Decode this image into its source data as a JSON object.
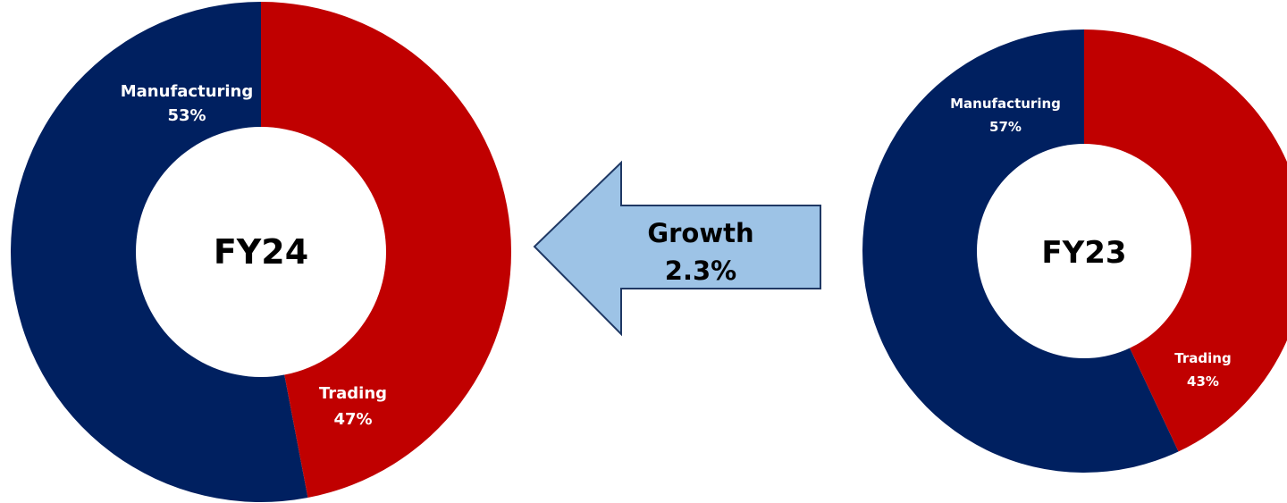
{
  "chart_data": [
    {
      "type": "pie",
      "title": "FY24",
      "categories": [
        "Manufacturing",
        "Trading"
      ],
      "values": [
        53,
        47
      ],
      "value_labels": [
        "53%",
        "47%"
      ],
      "colors": [
        "#002060",
        "#C00000"
      ]
    },
    {
      "type": "pie",
      "title": "FY23",
      "categories": [
        "Manufacturing",
        "Trading"
      ],
      "values": [
        57,
        43
      ],
      "value_labels": [
        "57%",
        "43%"
      ],
      "colors": [
        "#002060",
        "#C00000"
      ]
    }
  ],
  "arrow": {
    "line1": "Growth",
    "line2": "2.3%",
    "direction": "left",
    "fill": "#9DC3E6",
    "stroke": "#1F3864"
  }
}
